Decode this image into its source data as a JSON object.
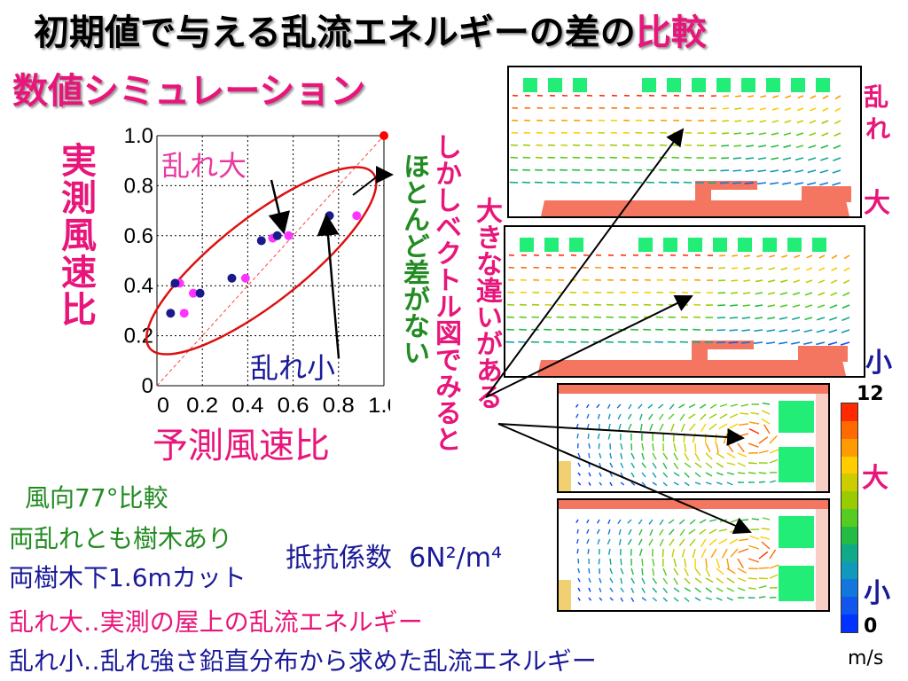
{
  "title": {
    "main": "初期値で与える乱流エネルギーの差の",
    "accent": "比較"
  },
  "subtitle": "数値シミュレーション",
  "chart_data": {
    "type": "scatter",
    "xlabel": "予測風速比",
    "ylabel": "実測風速比",
    "xlim": [
      0,
      1.0
    ],
    "ylim": [
      0,
      1.0
    ],
    "x_ticks": [
      "0",
      "0.2",
      "0.4",
      "0.6",
      "0.8",
      "1.0"
    ],
    "y_ticks": [
      "0",
      "0.2",
      "0.4",
      "0.6",
      "0.8",
      "1.0"
    ],
    "grid": true,
    "series": [
      {
        "name": "乱れ大",
        "color": "#ff33ff",
        "points": [
          [
            0.1,
            0.41
          ],
          [
            0.12,
            0.29
          ],
          [
            0.16,
            0.37
          ],
          [
            0.39,
            0.43
          ],
          [
            0.51,
            0.59
          ],
          [
            0.58,
            0.6
          ],
          [
            0.88,
            0.68
          ]
        ]
      },
      {
        "name": "乱れ小",
        "color": "#1a1a8c",
        "points": [
          [
            0.06,
            0.29
          ],
          [
            0.08,
            0.41
          ],
          [
            0.19,
            0.37
          ],
          [
            0.33,
            0.43
          ],
          [
            0.46,
            0.58
          ],
          [
            0.53,
            0.6
          ],
          [
            0.76,
            0.68
          ]
        ]
      },
      {
        "name": "",
        "color": "#ff0000",
        "points": [
          [
            1.0,
            1.0
          ]
        ]
      }
    ],
    "annotations": {
      "large": "乱れ大",
      "small": "乱れ小"
    }
  },
  "notes": {
    "no_diff": "ほとんど差がない",
    "however": "しかしベクトル図でみると",
    "big_diff": "大きな違いがある"
  },
  "conditions": {
    "wind": "風向77°比較",
    "both_trees": "両乱れとも樹木あり",
    "cut": "両樹木下1.6mカット",
    "resistance": "抵抗係数",
    "resistance_val": "6N²/m⁴"
  },
  "legend_lines": {
    "large": "乱れ大‥実測の屋上の乱流エネルギー",
    "small": "乱れ小‥乱れ強さ鉛直分布から求めた乱流エネルギー"
  },
  "side_labels": {
    "ran_1": "乱",
    "ran_2": "れ",
    "dai": "大",
    "shou": "小"
  },
  "colorbar": {
    "max": "12",
    "min": "0",
    "unit": "m/s",
    "big": "大",
    "small": "小",
    "colors": [
      "#ff2a00",
      "#ff6a00",
      "#ff9a00",
      "#ffcc00",
      "#cccc00",
      "#99cc00",
      "#55cc22",
      "#22bb44",
      "#11aa88",
      "#1199bb",
      "#1177dd",
      "#1155ee",
      "#0033ff"
    ]
  }
}
